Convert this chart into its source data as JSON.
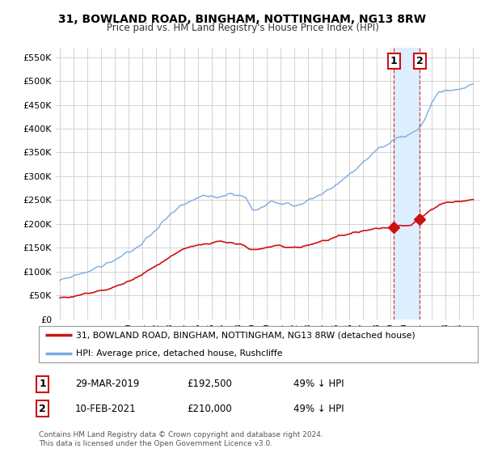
{
  "title": "31, BOWLAND ROAD, BINGHAM, NOTTINGHAM, NG13 8RW",
  "subtitle": "Price paid vs. HM Land Registry's House Price Index (HPI)",
  "legend_line1": "31, BOWLAND ROAD, BINGHAM, NOTTINGHAM, NG13 8RW (detached house)",
  "legend_line2": "HPI: Average price, detached house, Rushcliffe",
  "footnote": "Contains HM Land Registry data © Crown copyright and database right 2024.\nThis data is licensed under the Open Government Licence v3.0.",
  "sale1_date": "29-MAR-2019",
  "sale1_price": "£192,500",
  "sale1_hpi": "49% ↓ HPI",
  "sale1_year": 2019.23,
  "sale1_value": 192500,
  "sale2_date": "10-FEB-2021",
  "sale2_price": "£210,000",
  "sale2_hpi": "49% ↓ HPI",
  "sale2_year": 2021.11,
  "sale2_value": 210000,
  "yticks": [
    0,
    50000,
    100000,
    150000,
    200000,
    250000,
    300000,
    350000,
    400000,
    450000,
    500000,
    550000
  ],
  "hpi_color": "#7aade0",
  "price_color": "#cc1111",
  "shade_color": "#ddeeff",
  "bg_color": "#ffffff",
  "grid_color": "#cccccc",
  "xmin": 1995,
  "xmax": 2025
}
